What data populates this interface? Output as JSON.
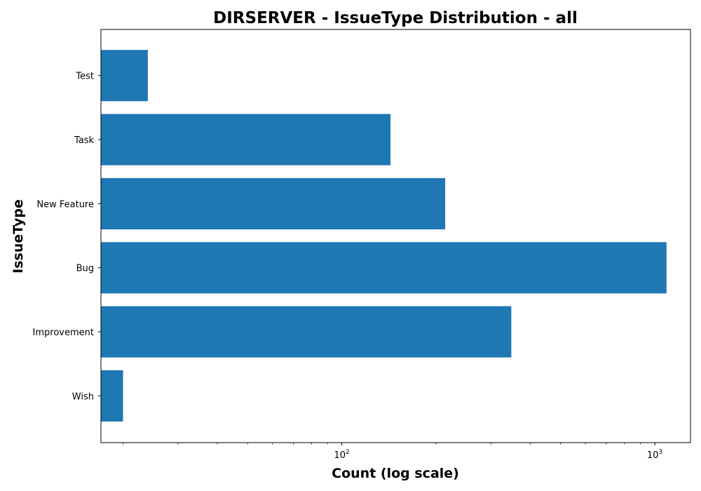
{
  "chart_data": {
    "type": "bar",
    "orientation": "horizontal",
    "title": "DIRSERVER - IssueType Distribution - all",
    "xlabel": "Count (log scale)",
    "ylabel": "IssueType",
    "x_scale": "log",
    "xlim": [
      17,
      1300
    ],
    "categories": [
      "Test",
      "Task",
      "New Feature",
      "Bug",
      "Improvement",
      "Wish"
    ],
    "values": [
      24,
      143,
      214,
      1090,
      348,
      20
    ],
    "x_ticks": [
      {
        "base": "10",
        "exp": "2",
        "value": 100
      },
      {
        "base": "10",
        "exp": "3",
        "value": 1000
      }
    ],
    "bar_color": "#1f77b4",
    "grid": false,
    "legend": "none"
  }
}
